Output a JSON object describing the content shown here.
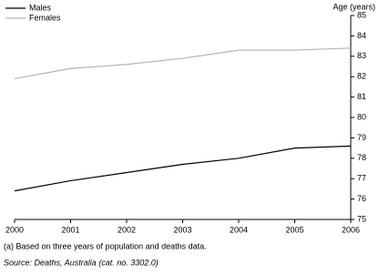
{
  "chart_data": {
    "type": "line",
    "y_label": "Age (years)",
    "x": [
      2000,
      2001,
      2002,
      2003,
      2004,
      2005,
      2006
    ],
    "xlim": [
      2000,
      2006
    ],
    "xticks": [
      2000,
      2001,
      2002,
      2003,
      2004,
      2005,
      2006
    ],
    "ylim": [
      75,
      85
    ],
    "yticks": [
      75,
      76,
      77,
      78,
      79,
      80,
      81,
      82,
      83,
      84,
      85
    ],
    "legend": "top-left",
    "series": [
      {
        "name": "Males",
        "color": "#000000",
        "values": [
          76.4,
          76.9,
          77.3,
          77.7,
          78.0,
          78.5,
          78.6
        ]
      },
      {
        "name": "Females",
        "color": "#b4b4b4",
        "values": [
          81.9,
          82.4,
          82.6,
          82.9,
          83.3,
          83.3,
          83.4
        ]
      }
    ],
    "footnotes": [
      "(a) Based on three years of population and deaths data.",
      "Source: Deaths, Australia (cat. no. 3302.0)"
    ]
  }
}
